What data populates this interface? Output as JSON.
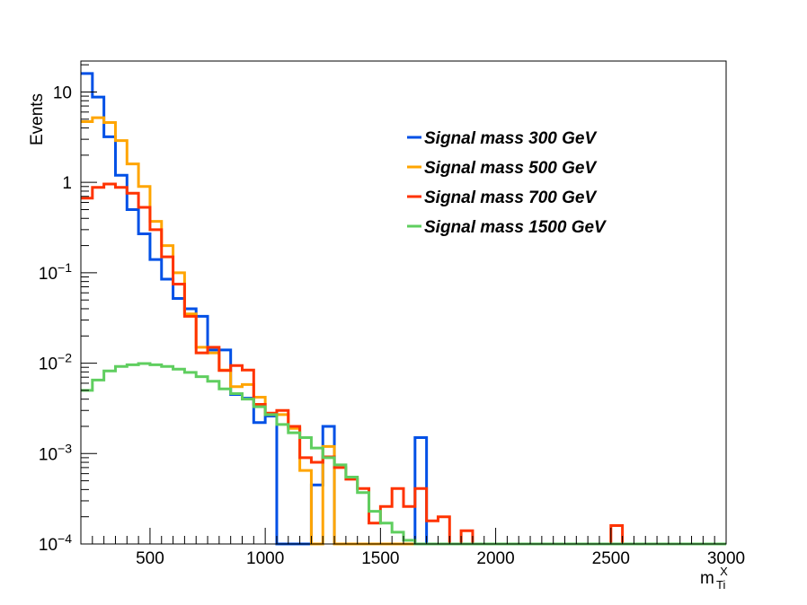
{
  "chart_data": {
    "type": "line",
    "ylabel": "Events",
    "xlabel": "m",
    "xlabel_sup": "X",
    "xlabel_sub": "Ti",
    "yscale": "log",
    "xlim": [
      200,
      3000
    ],
    "ylim": [
      0.0001,
      22
    ],
    "grid": false,
    "legend_position": "top-right",
    "x_ticks": [
      {
        "value": 500,
        "label": "500"
      },
      {
        "value": 1000,
        "label": "1000"
      },
      {
        "value": 1500,
        "label": "1500"
      },
      {
        "value": 2000,
        "label": "2000"
      },
      {
        "value": 2500,
        "label": "2500"
      },
      {
        "value": 3000,
        "label": "3000"
      }
    ],
    "y_ticks": [
      {
        "value": 10,
        "base": "10",
        "exp": ""
      },
      {
        "value": 1,
        "base": "1",
        "exp": ""
      },
      {
        "value": 0.1,
        "base": "10",
        "exp": "−1"
      },
      {
        "value": 0.01,
        "base": "10",
        "exp": "−2"
      },
      {
        "value": 0.001,
        "base": "10",
        "exp": "−3"
      },
      {
        "value": 0.0001,
        "base": "10",
        "exp": "−4"
      }
    ],
    "bin_edges_start": 200,
    "bin_width": 50,
    "series": [
      {
        "name": "Signal mass 300 GeV",
        "color": "#0050e6",
        "values": [
          16,
          8.8,
          3.2,
          1.2,
          0.5,
          0.27,
          0.14,
          0.085,
          0.052,
          0.04,
          0.033,
          0.014,
          0.014,
          0.0045,
          0.0041,
          0.0022,
          0.0026,
          0.0001,
          0.0001,
          0.0001,
          0.00045,
          0.002,
          0.0001,
          0.0001,
          0.0001,
          0.0001,
          0.0001,
          0.0001,
          0.0001,
          0.0015,
          0.0001,
          0.0001,
          0.0001,
          0.0001,
          0.0001,
          0.0001,
          0.0001,
          0.0001,
          0.0001,
          0.0001,
          0.0001,
          0.0001,
          0.0001,
          0.0001,
          0.0001,
          0.0001,
          0.0001,
          0.0001,
          0.0001,
          0.0001,
          0.0001,
          0.0001,
          0.0001,
          0.0001,
          0.0001,
          0.0001
        ]
      },
      {
        "name": "Signal mass 500 GeV",
        "color": "#ffa500",
        "values": [
          4.7,
          5.2,
          4.6,
          2.9,
          1.6,
          0.9,
          0.37,
          0.2,
          0.1,
          0.035,
          0.015,
          0.013,
          0.0084,
          0.0055,
          0.0058,
          0.0042,
          0.0027,
          0.0027,
          0.0019,
          0.00065,
          0.0001,
          0.0012,
          0.0001,
          0.0001,
          0.0001,
          0.0001,
          0.0001,
          0.0001,
          0.0001,
          0.0001,
          0.0001,
          0.0001,
          0.0001,
          0.0001,
          0.0001,
          0.0001,
          0.0001,
          0.0001,
          0.0001,
          0.0001,
          0.0001,
          0.0001,
          0.0001,
          0.0001,
          0.0001,
          0.0001,
          0.0001,
          0.0001,
          0.0001,
          0.0001,
          0.0001,
          0.0001,
          0.0001,
          0.0001,
          0.0001,
          0.0001
        ]
      },
      {
        "name": "Signal mass 700 GeV",
        "color": "#ff3300",
        "values": [
          0.67,
          0.88,
          0.96,
          0.88,
          0.76,
          0.53,
          0.3,
          0.15,
          0.075,
          0.033,
          0.013,
          0.015,
          0.0083,
          0.0094,
          0.0084,
          0.0035,
          0.0028,
          0.003,
          0.002,
          0.0009,
          0.0008,
          0.00092,
          0.0007,
          0.00052,
          0.00041,
          0.00017,
          0.00026,
          0.00041,
          0.00026,
          0.00041,
          0.00018,
          0.0002,
          0.0001,
          0.00014,
          0.0001,
          0.0001,
          0.0001,
          0.0001,
          0.0001,
          0.0001,
          0.0001,
          0.0001,
          0.0001,
          0.0001,
          0.0001,
          0.0001,
          0.00016,
          0.0001,
          0.0001,
          0.0001,
          0.0001,
          0.0001,
          0.0001,
          0.0001,
          0.0001,
          0.0001
        ]
      },
      {
        "name": "Signal mass 1500 GeV",
        "color": "#5fce5f",
        "values": [
          0.005,
          0.0065,
          0.0082,
          0.0092,
          0.0096,
          0.0099,
          0.0096,
          0.0092,
          0.0086,
          0.0079,
          0.0071,
          0.0063,
          0.0052,
          0.0046,
          0.004,
          0.0033,
          0.0027,
          0.0021,
          0.0017,
          0.0015,
          0.00115,
          0.0009,
          0.00075,
          0.00055,
          0.00037,
          0.00023,
          0.00017,
          0.000135,
          0.00011,
          0.0001,
          0.0001,
          0.0001,
          0.0001,
          0.0001,
          0.0001,
          0.0001,
          0.0001,
          0.0001,
          0.0001,
          0.0001,
          0.0001,
          0.0001,
          0.0001,
          0.0001,
          0.0001,
          0.0001,
          0.0001,
          0.0001,
          0.0001,
          0.0001,
          0.0001,
          0.0001,
          0.0001,
          0.0001,
          0.0001,
          0.0001
        ]
      }
    ]
  }
}
